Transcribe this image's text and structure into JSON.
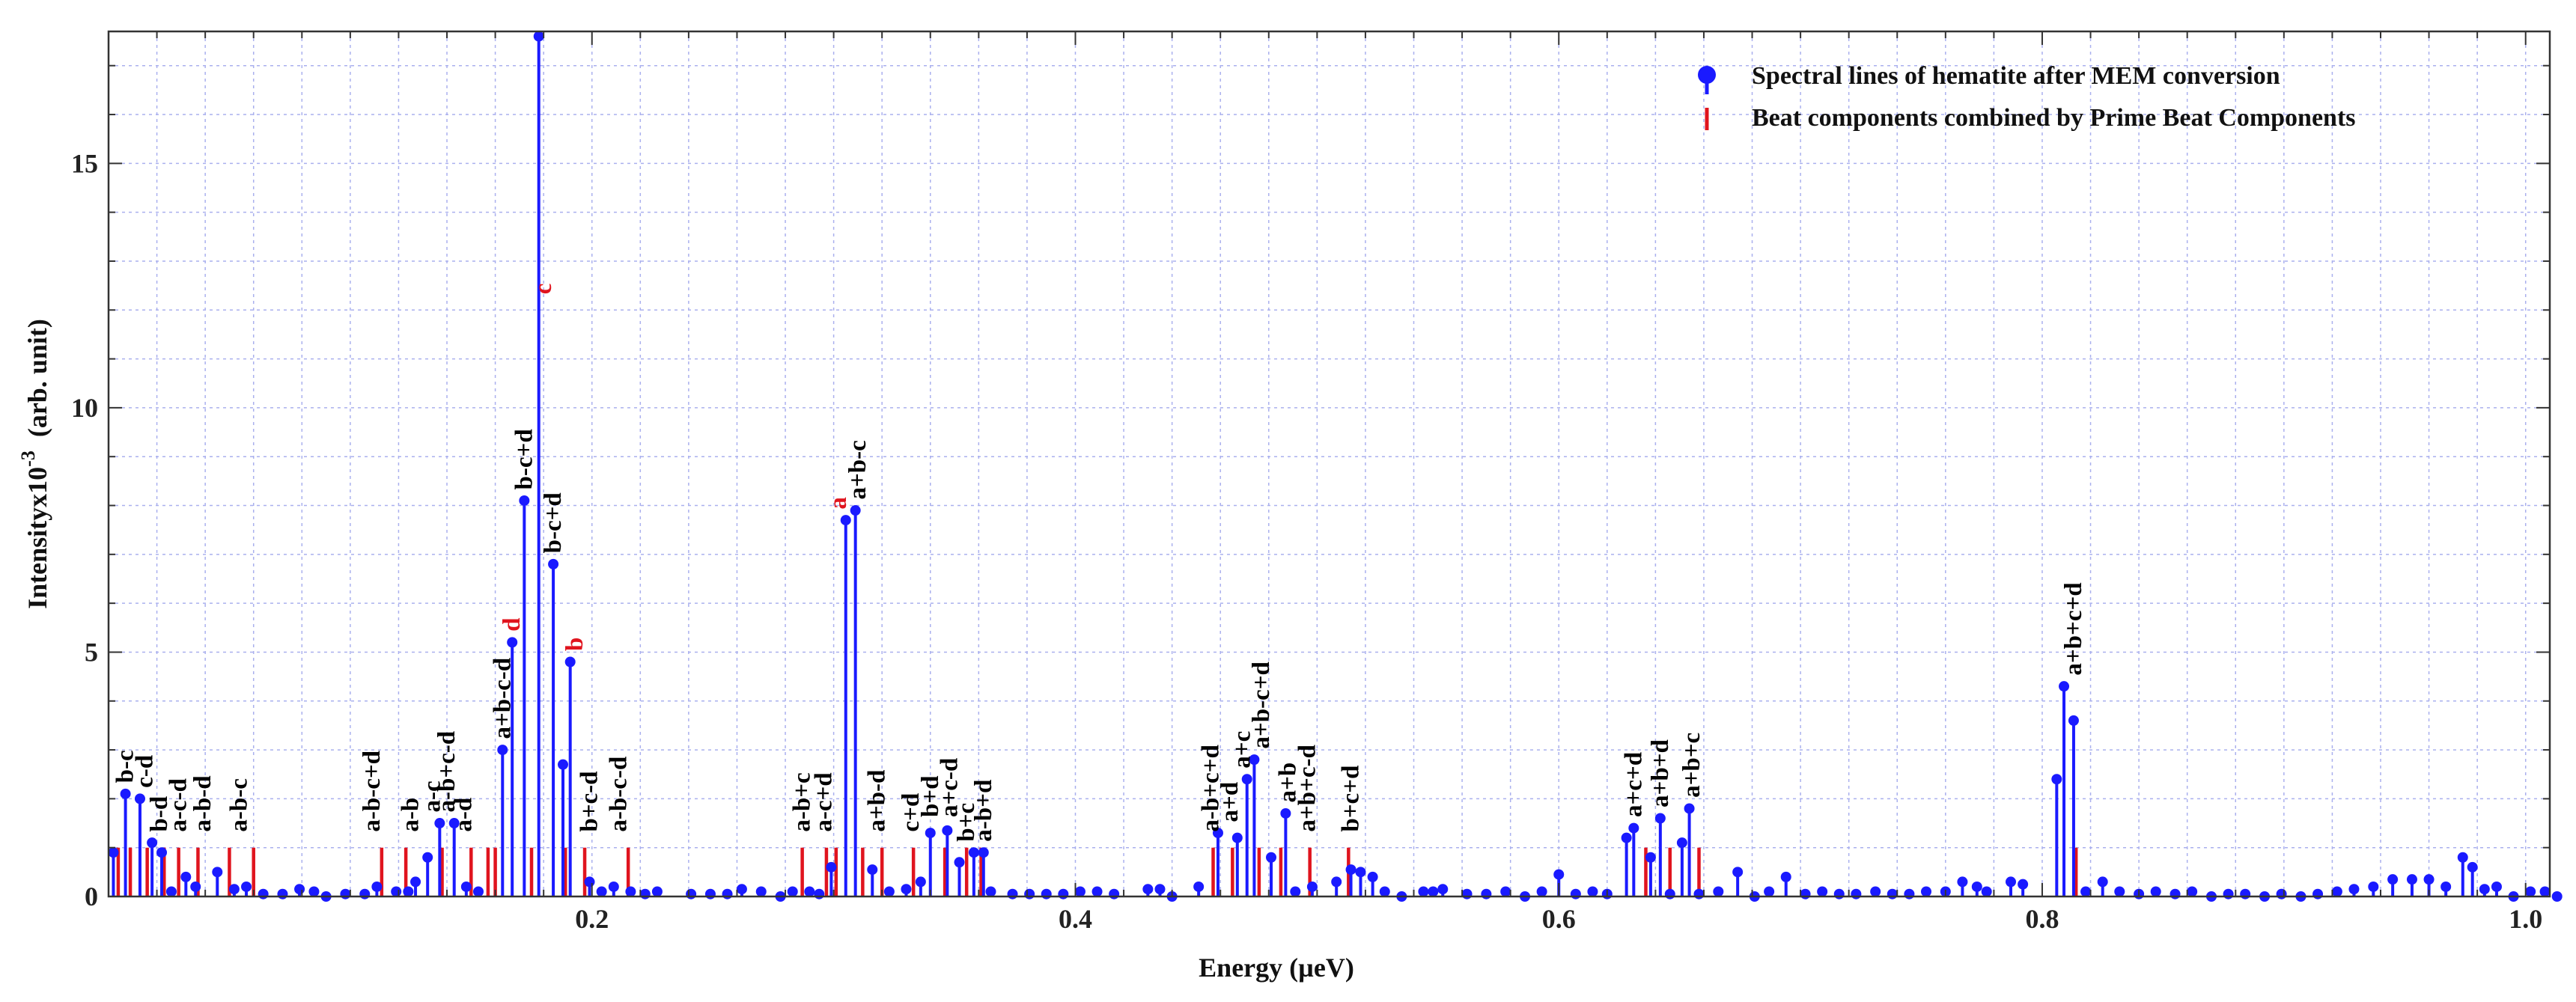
{
  "chart_data": {
    "type": "scatter",
    "xlabel": "Energy (µeV)",
    "ylabel_main": "Intensityx10",
    "ylabel_exp": "-3",
    "ylabel_unit": "(arb. unit)",
    "xlim": [
      0.0,
      1.01
    ],
    "ylim": [
      0,
      17.7
    ],
    "xticks": [
      0.2,
      0.4,
      0.6,
      0.8,
      1.0
    ],
    "xtick_labels": [
      "0.2",
      "0.4",
      "0.6",
      "0.8",
      "1.0"
    ],
    "yticks": [
      0,
      5,
      10,
      15
    ],
    "ytick_labels": [
      "0",
      "5",
      "10",
      "15"
    ],
    "grid": true,
    "legend_position": "top-right",
    "colors": {
      "spectral": "#1a1aff",
      "beat": "#e0141e",
      "grid": "#aab0ee"
    },
    "series": [
      {
        "name": "Spectral lines of hematite after MEM conversion",
        "style": "stem-dot",
        "color": "#1a1aff",
        "points": [
          [
            0.002,
            0.9
          ],
          [
            0.007,
            2.1
          ],
          [
            0.013,
            2.0
          ],
          [
            0.018,
            1.1
          ],
          [
            0.022,
            0.9
          ],
          [
            0.026,
            0.1
          ],
          [
            0.032,
            0.4
          ],
          [
            0.036,
            0.2
          ],
          [
            0.045,
            0.5
          ],
          [
            0.052,
            0.15
          ],
          [
            0.057,
            0.2
          ],
          [
            0.064,
            0.05
          ],
          [
            0.072,
            0.05
          ],
          [
            0.079,
            0.15
          ],
          [
            0.085,
            0.1
          ],
          [
            0.09,
            0.0
          ],
          [
            0.098,
            0.05
          ],
          [
            0.106,
            0.05
          ],
          [
            0.111,
            0.2
          ],
          [
            0.119,
            0.1
          ],
          [
            0.124,
            0.1
          ],
          [
            0.127,
            0.3
          ],
          [
            0.132,
            0.8
          ],
          [
            0.137,
            1.5
          ],
          [
            0.143,
            1.5
          ],
          [
            0.148,
            0.2
          ],
          [
            0.153,
            0.1
          ],
          [
            0.163,
            3.0
          ],
          [
            0.167,
            5.2
          ],
          [
            0.172,
            8.1
          ],
          [
            0.178,
            17.6
          ],
          [
            0.184,
            6.8
          ],
          [
            0.188,
            2.7
          ],
          [
            0.191,
            4.8
          ],
          [
            0.199,
            0.3
          ],
          [
            0.204,
            0.1
          ],
          [
            0.209,
            0.2
          ],
          [
            0.216,
            0.1
          ],
          [
            0.222,
            0.05
          ],
          [
            0.227,
            0.1
          ],
          [
            0.241,
            0.05
          ],
          [
            0.249,
            0.05
          ],
          [
            0.256,
            0.05
          ],
          [
            0.262,
            0.15
          ],
          [
            0.27,
            0.1
          ],
          [
            0.278,
            0.0
          ],
          [
            0.283,
            0.1
          ],
          [
            0.29,
            0.1
          ],
          [
            0.294,
            0.05
          ],
          [
            0.299,
            0.6
          ],
          [
            0.305,
            7.7
          ],
          [
            0.309,
            7.9
          ],
          [
            0.316,
            0.55
          ],
          [
            0.323,
            0.1
          ],
          [
            0.33,
            0.15
          ],
          [
            0.336,
            0.3
          ],
          [
            0.34,
            1.3
          ],
          [
            0.347,
            1.35
          ],
          [
            0.352,
            0.7
          ],
          [
            0.358,
            0.9
          ],
          [
            0.362,
            0.9
          ],
          [
            0.365,
            0.1
          ],
          [
            0.374,
            0.05
          ],
          [
            0.381,
            0.05
          ],
          [
            0.388,
            0.05
          ],
          [
            0.395,
            0.05
          ],
          [
            0.402,
            0.1
          ],
          [
            0.409,
            0.1
          ],
          [
            0.416,
            0.05
          ],
          [
            0.43,
            0.15
          ],
          [
            0.435,
            0.15
          ],
          [
            0.44,
            0.0
          ],
          [
            0.451,
            0.2
          ],
          [
            0.459,
            1.3
          ],
          [
            0.467,
            1.2
          ],
          [
            0.471,
            2.4
          ],
          [
            0.474,
            2.8
          ],
          [
            0.481,
            0.8
          ],
          [
            0.487,
            1.7
          ],
          [
            0.491,
            0.1
          ],
          [
            0.498,
            0.2
          ],
          [
            0.508,
            0.3
          ],
          [
            0.514,
            0.55
          ],
          [
            0.518,
            0.5
          ],
          [
            0.523,
            0.4
          ],
          [
            0.528,
            0.1
          ],
          [
            0.535,
            0.0
          ],
          [
            0.544,
            0.1
          ],
          [
            0.548,
            0.1
          ],
          [
            0.552,
            0.15
          ],
          [
            0.562,
            0.05
          ],
          [
            0.57,
            0.05
          ],
          [
            0.578,
            0.1
          ],
          [
            0.586,
            0.0
          ],
          [
            0.593,
            0.1
          ],
          [
            0.6,
            0.45
          ],
          [
            0.607,
            0.05
          ],
          [
            0.614,
            0.1
          ],
          [
            0.62,
            0.05
          ],
          [
            0.628,
            1.2
          ],
          [
            0.631,
            1.4
          ],
          [
            0.638,
            0.8
          ],
          [
            0.642,
            1.6
          ],
          [
            0.646,
            0.05
          ],
          [
            0.651,
            1.1
          ],
          [
            0.654,
            1.8
          ],
          [
            0.658,
            0.05
          ],
          [
            0.666,
            0.1
          ],
          [
            0.674,
            0.5
          ],
          [
            0.681,
            0.0
          ],
          [
            0.687,
            0.1
          ],
          [
            0.694,
            0.4
          ],
          [
            0.702,
            0.05
          ],
          [
            0.709,
            0.1
          ],
          [
            0.716,
            0.05
          ],
          [
            0.723,
            0.05
          ],
          [
            0.731,
            0.1
          ],
          [
            0.738,
            0.05
          ],
          [
            0.745,
            0.05
          ],
          [
            0.752,
            0.1
          ],
          [
            0.76,
            0.1
          ],
          [
            0.767,
            0.3
          ],
          [
            0.773,
            0.2
          ],
          [
            0.777,
            0.1
          ],
          [
            0.787,
            0.3
          ],
          [
            0.792,
            0.25
          ],
          [
            0.806,
            2.4
          ],
          [
            0.809,
            4.3
          ],
          [
            0.813,
            3.6
          ],
          [
            0.818,
            0.1
          ],
          [
            0.825,
            0.3
          ],
          [
            0.832,
            0.1
          ],
          [
            0.84,
            0.05
          ],
          [
            0.847,
            0.1
          ],
          [
            0.855,
            0.05
          ],
          [
            0.862,
            0.1
          ],
          [
            0.87,
            0.0
          ],
          [
            0.877,
            0.05
          ],
          [
            0.884,
            0.05
          ],
          [
            0.892,
            0.0
          ],
          [
            0.899,
            0.05
          ],
          [
            0.907,
            0.0
          ],
          [
            0.914,
            0.05
          ],
          [
            0.922,
            0.1
          ],
          [
            0.929,
            0.15
          ],
          [
            0.937,
            0.2
          ],
          [
            0.945,
            0.35
          ],
          [
            0.953,
            0.35
          ],
          [
            0.96,
            0.35
          ],
          [
            0.967,
            0.2
          ],
          [
            0.974,
            0.8
          ],
          [
            0.978,
            0.6
          ],
          [
            0.983,
            0.15
          ],
          [
            0.988,
            0.2
          ],
          [
            0.995,
            0.0
          ],
          [
            1.002,
            0.1
          ],
          [
            1.008,
            0.1
          ],
          [
            1.013,
            0.0
          ]
        ]
      },
      {
        "name": "Beat components combined by Prime Beat Components",
        "style": "stem",
        "color": "#e0141e",
        "points": [
          [
            0.004,
            1.0
          ],
          [
            0.009,
            1.0
          ],
          [
            0.016,
            1.0
          ],
          [
            0.023,
            1.0
          ],
          [
            0.029,
            1.0
          ],
          [
            0.037,
            1.0
          ],
          [
            0.05,
            1.0
          ],
          [
            0.06,
            1.0
          ],
          [
            0.113,
            1.0
          ],
          [
            0.123,
            1.0
          ],
          [
            0.138,
            1.0
          ],
          [
            0.15,
            1.0
          ],
          [
            0.157,
            1.0
          ],
          [
            0.16,
            1.0
          ],
          [
            0.175,
            1.0
          ],
          [
            0.189,
            1.0
          ],
          [
            0.197,
            1.0
          ],
          [
            0.215,
            1.0
          ],
          [
            0.287,
            1.0
          ],
          [
            0.297,
            1.0
          ],
          [
            0.301,
            1.0
          ],
          [
            0.312,
            1.0
          ],
          [
            0.32,
            1.0
          ],
          [
            0.333,
            1.0
          ],
          [
            0.346,
            1.0
          ],
          [
            0.355,
            1.0
          ],
          [
            0.361,
            1.0
          ],
          [
            0.457,
            1.0
          ],
          [
            0.465,
            1.0
          ],
          [
            0.476,
            1.0
          ],
          [
            0.485,
            1.0
          ],
          [
            0.497,
            1.0
          ],
          [
            0.513,
            1.0
          ],
          [
            0.636,
            1.0
          ],
          [
            0.646,
            1.0
          ],
          [
            0.658,
            1.0
          ],
          [
            0.814,
            1.0
          ]
        ]
      }
    ],
    "annotations": [
      {
        "text": "b-c",
        "x": 0.007,
        "y": 2.2,
        "color": "black"
      },
      {
        "text": "c-d",
        "x": 0.015,
        "y": 2.1,
        "color": "black"
      },
      {
        "text": "b-d",
        "x": 0.021,
        "y": 1.2,
        "color": "black"
      },
      {
        "text": "a-c-d",
        "x": 0.029,
        "y": 1.2,
        "color": "black"
      },
      {
        "text": "a-b-d",
        "x": 0.039,
        "y": 1.2,
        "color": "black"
      },
      {
        "text": "a-b-c",
        "x": 0.054,
        "y": 1.2,
        "color": "black"
      },
      {
        "text": "a-b-c+d",
        "x": 0.109,
        "y": 1.2,
        "color": "black"
      },
      {
        "text": "a-b",
        "x": 0.125,
        "y": 1.2,
        "color": "black"
      },
      {
        "text": "a-c",
        "x": 0.134,
        "y": 1.6,
        "color": "black"
      },
      {
        "text": "a-b+c-d",
        "x": 0.14,
        "y": 1.6,
        "color": "black"
      },
      {
        "text": "a-d",
        "x": 0.147,
        "y": 1.2,
        "color": "black"
      },
      {
        "text": "a+b-c-d",
        "x": 0.163,
        "y": 3.1,
        "color": "black"
      },
      {
        "text": "d",
        "x": 0.167,
        "y": 5.3,
        "color": "red"
      },
      {
        "text": "b-c+d",
        "x": 0.172,
        "y": 8.2,
        "color": "black"
      },
      {
        "text": "c",
        "x": 0.18,
        "y": 12.2,
        "color": "red"
      },
      {
        "text": "b-c+d",
        "x": 0.184,
        "y": 6.9,
        "color": "black"
      },
      {
        "text": "b",
        "x": 0.193,
        "y": 4.9,
        "color": "red"
      },
      {
        "text": "b+c-d",
        "x": 0.199,
        "y": 1.2,
        "color": "black"
      },
      {
        "text": "a-b-c-d",
        "x": 0.211,
        "y": 1.2,
        "color": "black"
      },
      {
        "text": "a-b+c",
        "x": 0.287,
        "y": 1.2,
        "color": "black"
      },
      {
        "text": "a-c+d",
        "x": 0.296,
        "y": 1.2,
        "color": "black"
      },
      {
        "text": "a",
        "x": 0.302,
        "y": 7.8,
        "color": "red"
      },
      {
        "text": "a+b-c",
        "x": 0.31,
        "y": 8.0,
        "color": "black"
      },
      {
        "text": "a+b-d",
        "x": 0.318,
        "y": 1.2,
        "color": "black"
      },
      {
        "text": "c+d",
        "x": 0.332,
        "y": 1.2,
        "color": "black"
      },
      {
        "text": "b+d",
        "x": 0.34,
        "y": 1.5,
        "color": "black"
      },
      {
        "text": "a+c-d",
        "x": 0.348,
        "y": 1.5,
        "color": "black"
      },
      {
        "text": "b+c",
        "x": 0.355,
        "y": 1.0,
        "color": "black"
      },
      {
        "text": "a-b+d",
        "x": 0.362,
        "y": 1.0,
        "color": "black"
      },
      {
        "text": "a-b+c+d",
        "x": 0.456,
        "y": 1.2,
        "color": "black"
      },
      {
        "text": "a+d",
        "x": 0.464,
        "y": 1.4,
        "color": "black"
      },
      {
        "text": "a+c",
        "x": 0.469,
        "y": 2.5,
        "color": "black"
      },
      {
        "text": "a+b-c+d",
        "x": 0.477,
        "y": 2.9,
        "color": "black"
      },
      {
        "text": "a+b",
        "x": 0.488,
        "y": 1.8,
        "color": "black"
      },
      {
        "text": "a+b+c-d",
        "x": 0.496,
        "y": 1.2,
        "color": "black"
      },
      {
        "text": "b+c+d",
        "x": 0.514,
        "y": 1.2,
        "color": "black"
      },
      {
        "text": "a+c+d",
        "x": 0.631,
        "y": 1.5,
        "color": "black"
      },
      {
        "text": "a+b+d",
        "x": 0.642,
        "y": 1.7,
        "color": "black"
      },
      {
        "text": "a+b+c",
        "x": 0.655,
        "y": 1.9,
        "color": "black"
      },
      {
        "text": "a+b+c+d",
        "x": 0.813,
        "y": 4.4,
        "color": "black"
      }
    ]
  }
}
